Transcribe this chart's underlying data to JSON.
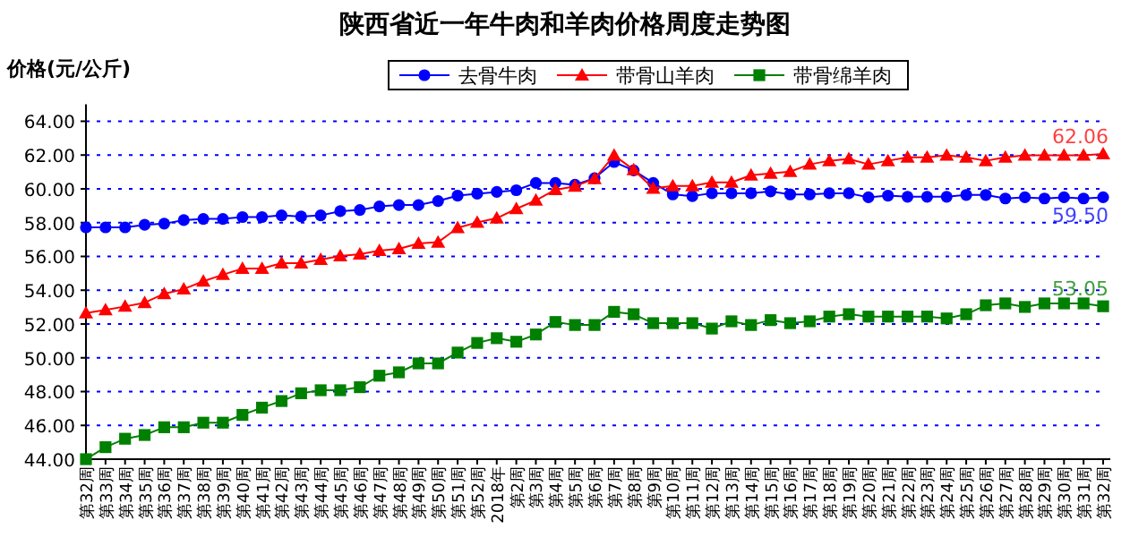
{
  "chart_data": {
    "type": "line",
    "title": "陕西省近一年牛肉和羊肉价格周度走势图",
    "ylabel": "价格(元/公斤)",
    "categories": [
      "第32周",
      "第33周",
      "第34周",
      "第35周",
      "第36周",
      "第37周",
      "第38周",
      "第39周",
      "第40周",
      "第41周",
      "第42周",
      "第43周",
      "第44周",
      "第45周",
      "第46周",
      "第47周",
      "第48周",
      "第49周",
      "第50周",
      "第51周",
      "第52周",
      "2018年",
      "第2周",
      "第3周",
      "第4周",
      "第5周",
      "第6周",
      "第7周",
      "第8周",
      "第9周",
      "第10周",
      "第11周",
      "第12周",
      "第13周",
      "第14周",
      "第15周",
      "第16周",
      "第17周",
      "第18周",
      "第19周",
      "第20周",
      "第21周",
      "第22周",
      "第23周",
      "第24周",
      "第25周",
      "第26周",
      "第27周",
      "第28周",
      "第29周",
      "第30周",
      "第31周",
      "第32周"
    ],
    "series": [
      {
        "name": "去骨牛肉",
        "color": "#0000ff",
        "marker": "circle",
        "values": [
          57.72,
          57.72,
          57.72,
          57.87,
          57.94,
          58.15,
          58.22,
          58.22,
          58.33,
          58.33,
          58.43,
          58.36,
          58.43,
          58.68,
          58.75,
          58.96,
          59.04,
          59.04,
          59.28,
          59.6,
          59.71,
          59.82,
          59.92,
          60.35,
          60.35,
          60.24,
          60.63,
          61.59,
          61.09,
          60.35,
          59.67,
          59.57,
          59.74,
          59.74,
          59.74,
          59.85,
          59.67,
          59.67,
          59.74,
          59.74,
          59.5,
          59.6,
          59.53,
          59.53,
          59.53,
          59.64,
          59.64,
          59.43,
          59.5,
          59.43,
          59.5,
          59.43,
          59.5
        ],
        "value_labels": [
          null,
          null,
          null,
          null,
          null,
          null,
          null,
          null,
          null,
          null,
          null,
          null,
          null,
          null,
          null,
          null,
          null,
          null,
          null,
          null,
          null,
          null,
          null,
          null,
          null,
          null,
          null,
          null,
          null,
          null,
          null,
          null,
          null,
          null,
          null,
          null,
          null,
          null,
          null,
          null,
          null,
          null,
          null,
          null,
          null,
          null,
          null,
          null,
          null,
          null,
          null,
          null,
          "59.50"
        ]
      },
      {
        "name": "带骨山羊肉",
        "color": "#ff0000",
        "marker": "triangle",
        "values": [
          52.65,
          52.83,
          53.04,
          53.26,
          53.79,
          54.07,
          54.53,
          54.92,
          55.28,
          55.28,
          55.6,
          55.6,
          55.81,
          56.02,
          56.13,
          56.34,
          56.45,
          56.77,
          56.84,
          57.69,
          58.01,
          58.26,
          58.82,
          59.32,
          59.95,
          60.15,
          60.6,
          61.98,
          61.13,
          60.03,
          60.17,
          60.17,
          60.38,
          60.38,
          60.81,
          60.91,
          61.02,
          61.45,
          61.66,
          61.77,
          61.45,
          61.66,
          61.87,
          61.87,
          61.98,
          61.87,
          61.66,
          61.87,
          61.98,
          61.98,
          61.98,
          61.98,
          62.06
        ],
        "value_labels": [
          null,
          null,
          null,
          null,
          null,
          null,
          null,
          null,
          null,
          null,
          null,
          null,
          null,
          null,
          null,
          null,
          null,
          null,
          null,
          null,
          null,
          null,
          null,
          null,
          null,
          null,
          null,
          null,
          null,
          null,
          null,
          null,
          null,
          null,
          null,
          null,
          null,
          null,
          null,
          null,
          null,
          null,
          null,
          null,
          null,
          null,
          null,
          null,
          null,
          null,
          null,
          null,
          "62.06"
        ]
      },
      {
        "name": "带骨绵羊肉",
        "color": "#008000",
        "marker": "square",
        "values": [
          44.0,
          44.71,
          45.21,
          45.43,
          45.89,
          45.89,
          46.16,
          46.16,
          46.62,
          47.05,
          47.44,
          47.9,
          48.08,
          48.08,
          48.26,
          48.94,
          49.14,
          49.67,
          49.67,
          50.31,
          50.88,
          51.16,
          50.95,
          51.38,
          52.12,
          51.94,
          51.94,
          52.72,
          52.58,
          52.05,
          52.05,
          52.05,
          51.73,
          52.16,
          51.94,
          52.23,
          52.05,
          52.16,
          52.44,
          52.58,
          52.44,
          52.44,
          52.44,
          52.44,
          52.33,
          52.58,
          53.11,
          53.22,
          53.01,
          53.22,
          53.22,
          53.22,
          53.05
        ],
        "value_labels": [
          null,
          null,
          null,
          null,
          null,
          null,
          null,
          null,
          null,
          null,
          null,
          null,
          null,
          null,
          null,
          null,
          null,
          null,
          null,
          null,
          null,
          null,
          null,
          null,
          null,
          null,
          null,
          null,
          null,
          null,
          null,
          null,
          null,
          null,
          null,
          null,
          null,
          null,
          null,
          null,
          null,
          null,
          null,
          null,
          null,
          null,
          null,
          null,
          null,
          null,
          null,
          null,
          "53.05"
        ]
      }
    ],
    "ylim": [
      44,
      65
    ],
    "yticks": [
      {
        "value": 44,
        "label": "44.00"
      },
      {
        "value": 46,
        "label": "46.00"
      },
      {
        "value": 48,
        "label": "48.00"
      },
      {
        "value": 50,
        "label": "50.00"
      },
      {
        "value": 52,
        "label": "52.00"
      },
      {
        "value": 54,
        "label": "54.00"
      },
      {
        "value": 56,
        "label": "56.00"
      },
      {
        "value": 58,
        "label": "58.00"
      },
      {
        "value": 60,
        "label": "60.00"
      },
      {
        "value": 62,
        "label": "62.00"
      },
      {
        "value": 64,
        "label": "64.00"
      }
    ],
    "grid": "y",
    "legend": "top"
  }
}
